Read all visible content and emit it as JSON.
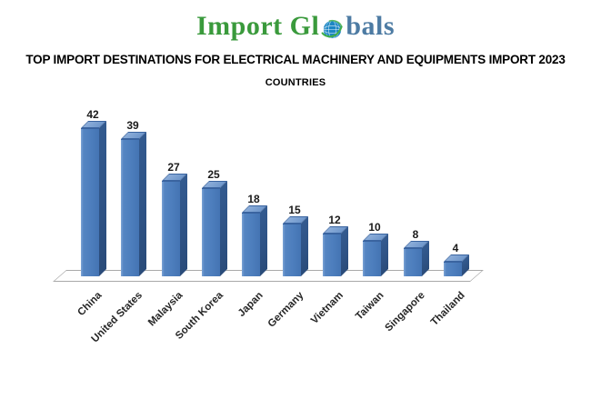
{
  "logo": {
    "part1": "Import Gl",
    "part2": "bals",
    "icon": "globe-icon",
    "green": "#3a9a3c",
    "blue": "#4d7ba3",
    "globe_blue": "#1b86c4",
    "globe_green": "#3fae49"
  },
  "title": "TOP IMPORT DESTINATIONS FOR ELECTRICAL MACHINERY AND EQUIPMENTS IMPORT 2023",
  "subtitle": "COUNTRIES",
  "chart_data": {
    "type": "bar",
    "style": "3d-column",
    "title": "TOP IMPORT DESTINATIONS FOR ELECTRICAL MACHINERY AND EQUIPMENTS IMPORT 2023",
    "xlabel": "COUNTRIES",
    "ylabel": "",
    "categories": [
      "China",
      "United States",
      "Malaysia",
      "South Korea",
      "Japan",
      "Germany",
      "Vietnam",
      "Taiwan",
      "Singapore",
      "Thailand"
    ],
    "values": [
      42,
      39,
      27,
      25,
      18,
      15,
      12,
      10,
      8,
      4
    ],
    "data_labels": true,
    "legend": "none",
    "gridlines": false,
    "y_axis_visible": false,
    "x_label_rotation": -45,
    "ylim": [
      0,
      45
    ],
    "colors": {
      "bar_front": "#4d7ebd",
      "bar_side": "#2e5284",
      "bar_top": "#6f97cb",
      "floor_border": "#a9a9a9",
      "value_label": "#1a1a1a"
    }
  }
}
